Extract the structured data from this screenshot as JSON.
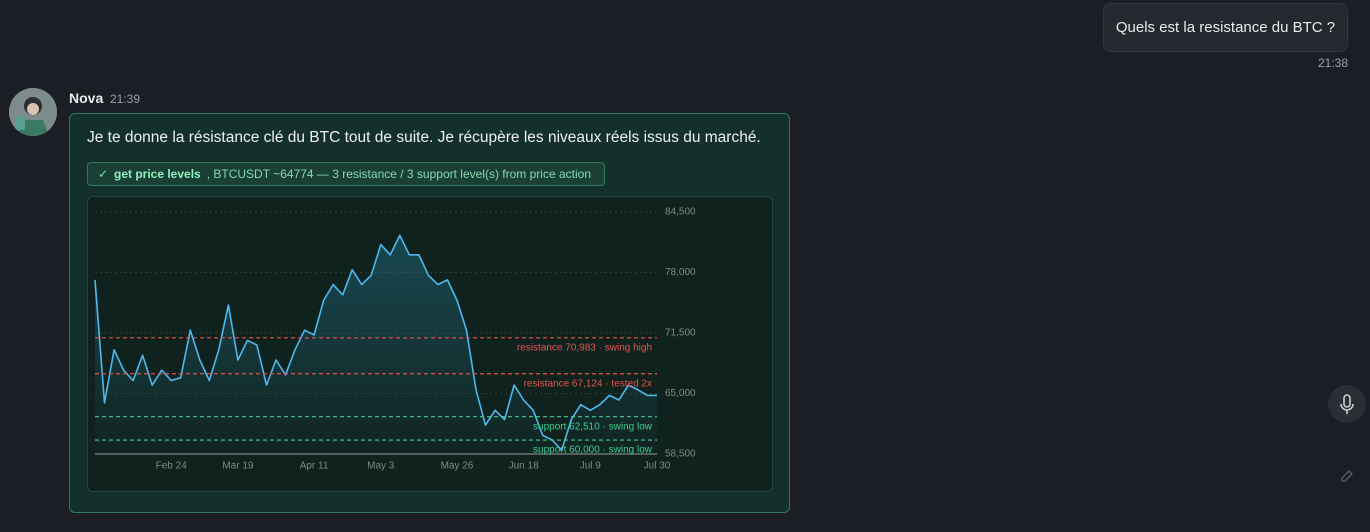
{
  "user_message": {
    "text": "Quels est la resistance du BTC ?",
    "time": "21:38"
  },
  "assistant": {
    "name": "Nova",
    "time": "21:39",
    "text": "Je te donne la résistance clé du BTC tout de suite. Je récupère les niveaux réels issus du marché.",
    "tool": {
      "name": "get price levels",
      "result": ", BTCUSDT ~64774 — 3 resistance / 3 support level(s) from price action"
    }
  },
  "chart_data": {
    "type": "line",
    "color": "#4fb8f0",
    "categories": [
      null,
      null,
      null,
      null,
      null,
      null,
      null,
      null,
      "Feb 24",
      null,
      null,
      null,
      null,
      null,
      null,
      "Mar 19",
      null,
      null,
      null,
      null,
      null,
      null,
      null,
      "Apr 11",
      null,
      null,
      null,
      null,
      null,
      null,
      "May 3",
      null,
      null,
      null,
      null,
      null,
      null,
      null,
      "May 26",
      null,
      null,
      null,
      null,
      null,
      null,
      "Jun 18",
      null,
      null,
      null,
      null,
      null,
      null,
      "Jul 9",
      null,
      null,
      null,
      null,
      null,
      null,
      "Jul 30"
    ],
    "values": [
      77200,
      64000,
      69700,
      67500,
      66400,
      69100,
      65900,
      67500,
      66400,
      66700,
      71800,
      68600,
      66400,
      69700,
      74500,
      68600,
      70700,
      70200,
      65900,
      68600,
      67000,
      69700,
      71800,
      71300,
      75000,
      76700,
      75600,
      78300,
      76700,
      77700,
      81000,
      79900,
      82000,
      79900,
      79900,
      77700,
      76700,
      77200,
      75000,
      71800,
      65400,
      61600,
      63200,
      62200,
      65900,
      64300,
      63200,
      60500,
      60000,
      58900,
      62200,
      63800,
      63200,
      63800,
      64800,
      64300,
      65900,
      65400,
      64800,
      64800
    ],
    "ylim": [
      58500,
      84500
    ],
    "yticks": [
      {
        "value": 58500,
        "label": "58,500"
      },
      {
        "value": 65000,
        "label": "65,000"
      },
      {
        "value": 71500,
        "label": "71,500"
      },
      {
        "value": 78000,
        "label": "78,000"
      },
      {
        "value": 84500,
        "label": "84,500"
      }
    ],
    "grid": true,
    "levels": [
      {
        "value": 70983,
        "label": "resistance 70,983 · swing high",
        "color": "#e5534b"
      },
      {
        "value": 67124,
        "label": "resistance 67,124 · tested 2x",
        "color": "#e5534b"
      },
      {
        "value": 62510,
        "label": "support 62,510 · swing low",
        "color": "#3ecf8e"
      },
      {
        "value": 60000,
        "label": "support 60,000 · swing low",
        "color": "#3ecf8e"
      }
    ]
  }
}
